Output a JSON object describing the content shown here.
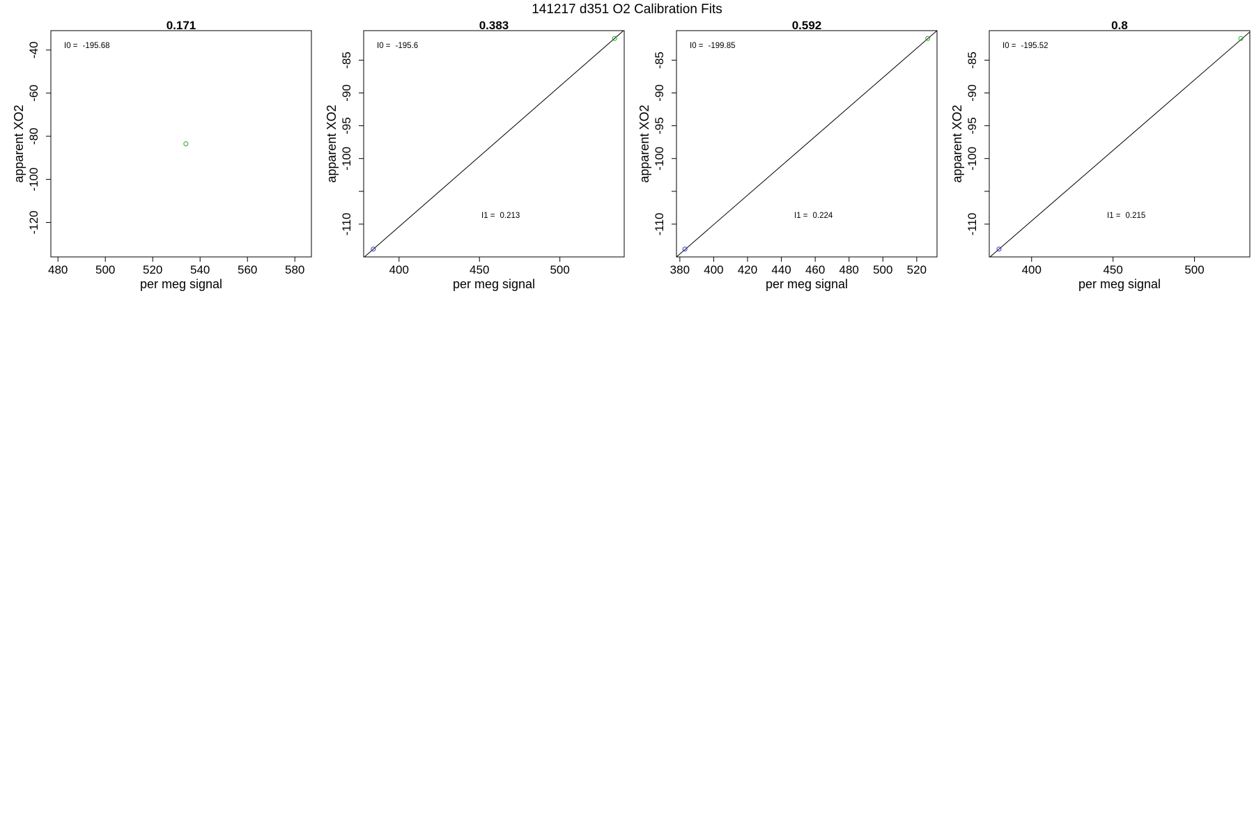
{
  "figure": {
    "title": "141217   d351   O2 Calibration Fits"
  },
  "chart_data": [
    {
      "type": "scatter",
      "title": "0.171",
      "xlabel": "per meg signal",
      "ylabel": "apparent XO2",
      "xlim": [
        477,
        587
      ],
      "ylim": [
        -136,
        -31
      ],
      "xticks": [
        480,
        500,
        520,
        540,
        560,
        580
      ],
      "yticks": [
        -40,
        -60,
        -80,
        -100,
        -120
      ],
      "points": [
        {
          "x": 534,
          "y": -83.5,
          "color": "#22aa22"
        }
      ],
      "fit_line": null,
      "annotations": [
        {
          "label": "I0 =",
          "value": "-195.68",
          "pos": "top-left"
        }
      ]
    },
    {
      "type": "scatter",
      "title": "0.383",
      "xlabel": "per meg signal",
      "ylabel": "apparent XO2",
      "xlim": [
        378,
        540
      ],
      "ylim": [
        -115,
        -80.5
      ],
      "xticks": [
        400,
        450,
        500
      ],
      "yticks": [
        -85,
        -90,
        -95,
        -100,
        -105,
        -110
      ],
      "ytick_labels": [
        "-85",
        "-90",
        "-95",
        "-100",
        "",
        "-110"
      ],
      "points": [
        {
          "x": 384,
          "y": -113.8,
          "color": "#3333cc"
        },
        {
          "x": 534,
          "y": -81.7,
          "color": "#22aa22"
        }
      ],
      "fit_line": {
        "x1": 378,
        "y1": -115.1,
        "x2": 540,
        "y2": -80.4
      },
      "annotations": [
        {
          "label": "I0 =",
          "value": "-195.6",
          "pos": "top-left"
        },
        {
          "label": "I1 =",
          "value": "0.213",
          "pos": "center-right"
        }
      ]
    },
    {
      "type": "scatter",
      "title": "0.592",
      "xlabel": "per meg signal",
      "ylabel": "apparent XO2",
      "xlim": [
        378,
        532
      ],
      "ylim": [
        -115,
        -80.5
      ],
      "xticks": [
        380,
        400,
        420,
        440,
        460,
        480,
        500,
        520
      ],
      "yticks": [
        -85,
        -90,
        -95,
        -100,
        -105,
        -110
      ],
      "ytick_labels": [
        "-85",
        "-90",
        "-95",
        "-100",
        "",
        "-110"
      ],
      "points": [
        {
          "x": 383,
          "y": -113.8,
          "color": "#3333cc"
        },
        {
          "x": 526.5,
          "y": -81.7,
          "color": "#22aa22"
        }
      ],
      "fit_line": {
        "x1": 378,
        "y1": -115.0,
        "x2": 532,
        "y2": -80.5
      },
      "annotations": [
        {
          "label": "I0 =",
          "value": "-199.85",
          "pos": "top-left"
        },
        {
          "label": "I1 =",
          "value": "0.224",
          "pos": "center-right"
        }
      ]
    },
    {
      "type": "scatter",
      "title": "0.8",
      "xlabel": "per meg signal",
      "ylabel": "apparent XO2",
      "xlim": [
        374,
        534
      ],
      "ylim": [
        -115,
        -80.5
      ],
      "xticks": [
        400,
        450,
        500
      ],
      "yticks": [
        -85,
        -90,
        -95,
        -100,
        -105,
        -110
      ],
      "ytick_labels": [
        "-85",
        "-90",
        "-95",
        "-100",
        "",
        "-110"
      ],
      "points": [
        {
          "x": 380,
          "y": -113.8,
          "color": "#3333cc"
        },
        {
          "x": 528.5,
          "y": -81.7,
          "color": "#22aa22"
        }
      ],
      "fit_line": {
        "x1": 374,
        "y1": -115.1,
        "x2": 534,
        "y2": -80.7
      },
      "annotations": [
        {
          "label": "I0 =",
          "value": "-195.52",
          "pos": "top-left"
        },
        {
          "label": "I1 =",
          "value": "0.215",
          "pos": "center-right"
        }
      ]
    }
  ]
}
